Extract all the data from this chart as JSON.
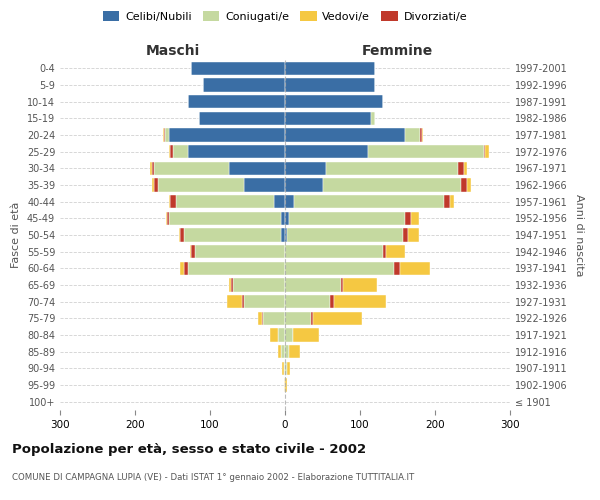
{
  "age_groups": [
    "100+",
    "95-99",
    "90-94",
    "85-89",
    "80-84",
    "75-79",
    "70-74",
    "65-69",
    "60-64",
    "55-59",
    "50-54",
    "45-49",
    "40-44",
    "35-39",
    "30-34",
    "25-29",
    "20-24",
    "15-19",
    "10-14",
    "5-9",
    "0-4"
  ],
  "birth_years": [
    "≤ 1901",
    "1902-1906",
    "1907-1911",
    "1912-1916",
    "1917-1921",
    "1922-1926",
    "1927-1931",
    "1932-1936",
    "1937-1941",
    "1942-1946",
    "1947-1951",
    "1952-1956",
    "1957-1961",
    "1962-1966",
    "1967-1971",
    "1972-1976",
    "1977-1981",
    "1982-1986",
    "1987-1991",
    "1992-1996",
    "1997-2001"
  ],
  "maschi_celibi": [
    0,
    0,
    0,
    0,
    0,
    0,
    0,
    0,
    0,
    0,
    5,
    5,
    15,
    55,
    75,
    130,
    155,
    115,
    130,
    110,
    125
  ],
  "maschi_coniugati": [
    0,
    0,
    2,
    5,
    10,
    30,
    55,
    70,
    130,
    120,
    130,
    150,
    130,
    115,
    100,
    20,
    5,
    0,
    0,
    0,
    0
  ],
  "maschi_vedovi": [
    0,
    1,
    2,
    5,
    10,
    5,
    20,
    3,
    5,
    2,
    2,
    2,
    2,
    2,
    2,
    2,
    2,
    0,
    0,
    0,
    0
  ],
  "maschi_divorziati": [
    0,
    0,
    0,
    0,
    0,
    1,
    3,
    2,
    5,
    5,
    5,
    2,
    8,
    5,
    3,
    3,
    1,
    0,
    0,
    0,
    0
  ],
  "femmine_nubili": [
    0,
    0,
    0,
    0,
    0,
    0,
    0,
    0,
    0,
    0,
    2,
    5,
    12,
    50,
    55,
    110,
    160,
    115,
    130,
    120,
    120
  ],
  "femmine_coniugate": [
    0,
    0,
    2,
    5,
    10,
    35,
    60,
    75,
    145,
    130,
    155,
    155,
    200,
    185,
    175,
    155,
    20,
    5,
    0,
    0,
    0
  ],
  "femmine_vedove": [
    0,
    2,
    5,
    15,
    35,
    65,
    70,
    45,
    40,
    25,
    15,
    10,
    5,
    5,
    5,
    5,
    2,
    0,
    0,
    0,
    0
  ],
  "femmine_divorziate": [
    0,
    0,
    0,
    0,
    0,
    2,
    5,
    2,
    8,
    5,
    7,
    8,
    8,
    8,
    8,
    2,
    2,
    0,
    0,
    0,
    0
  ],
  "color_celibi": "#3a6ea5",
  "color_coniugati": "#c5d9a0",
  "color_vedovi": "#f5c842",
  "color_divorziati": "#c0392b",
  "title": "Popolazione per età, sesso e stato civile - 2002",
  "subtitle": "COMUNE DI CAMPAGNA LUPIA (VE) - Dati ISTAT 1° gennaio 2002 - Elaborazione TUTTITALIA.IT",
  "xlabel_left": "Maschi",
  "xlabel_right": "Femmine",
  "ylabel_left": "Fasce di età",
  "ylabel_right": "Anni di nascita",
  "xlim": 300,
  "bg_color": "#ffffff",
  "grid_color": "#cccccc"
}
